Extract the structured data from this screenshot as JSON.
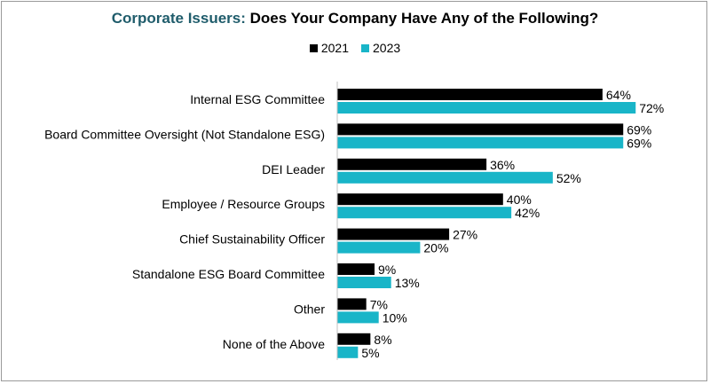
{
  "title": {
    "accent": "Corporate Issuers:",
    "rest": " Does Your Company Have Any of the Following?"
  },
  "colors": {
    "2021": "#000000",
    "2023": "#19b5c8",
    "title_accent": "#1f5c6b"
  },
  "chart_data": {
    "type": "bar",
    "orientation": "horizontal",
    "categories": [
      "Internal ESG Committee",
      "Board Committee Oversight (Not Standalone ESG)",
      "DEI Leader",
      "Employee / Resource Groups",
      "Chief Sustainability Officer",
      "Standalone ESG Board Committee",
      "Other",
      "None of the Above"
    ],
    "series": [
      {
        "name": "2021",
        "values": [
          64,
          69,
          36,
          40,
          27,
          9,
          7,
          8
        ],
        "labels": [
          "64%",
          "69%",
          "36%",
          "40%",
          "27%",
          "9%",
          "7%",
          "8%"
        ]
      },
      {
        "name": "2023",
        "values": [
          72,
          69,
          52,
          42,
          20,
          13,
          10,
          5
        ],
        "labels": [
          "72%",
          "69%",
          "52%",
          "42%",
          "20%",
          "13%",
          "10%",
          "5%"
        ]
      }
    ],
    "unit": "%",
    "legend_position": "top-center",
    "grid": false
  }
}
